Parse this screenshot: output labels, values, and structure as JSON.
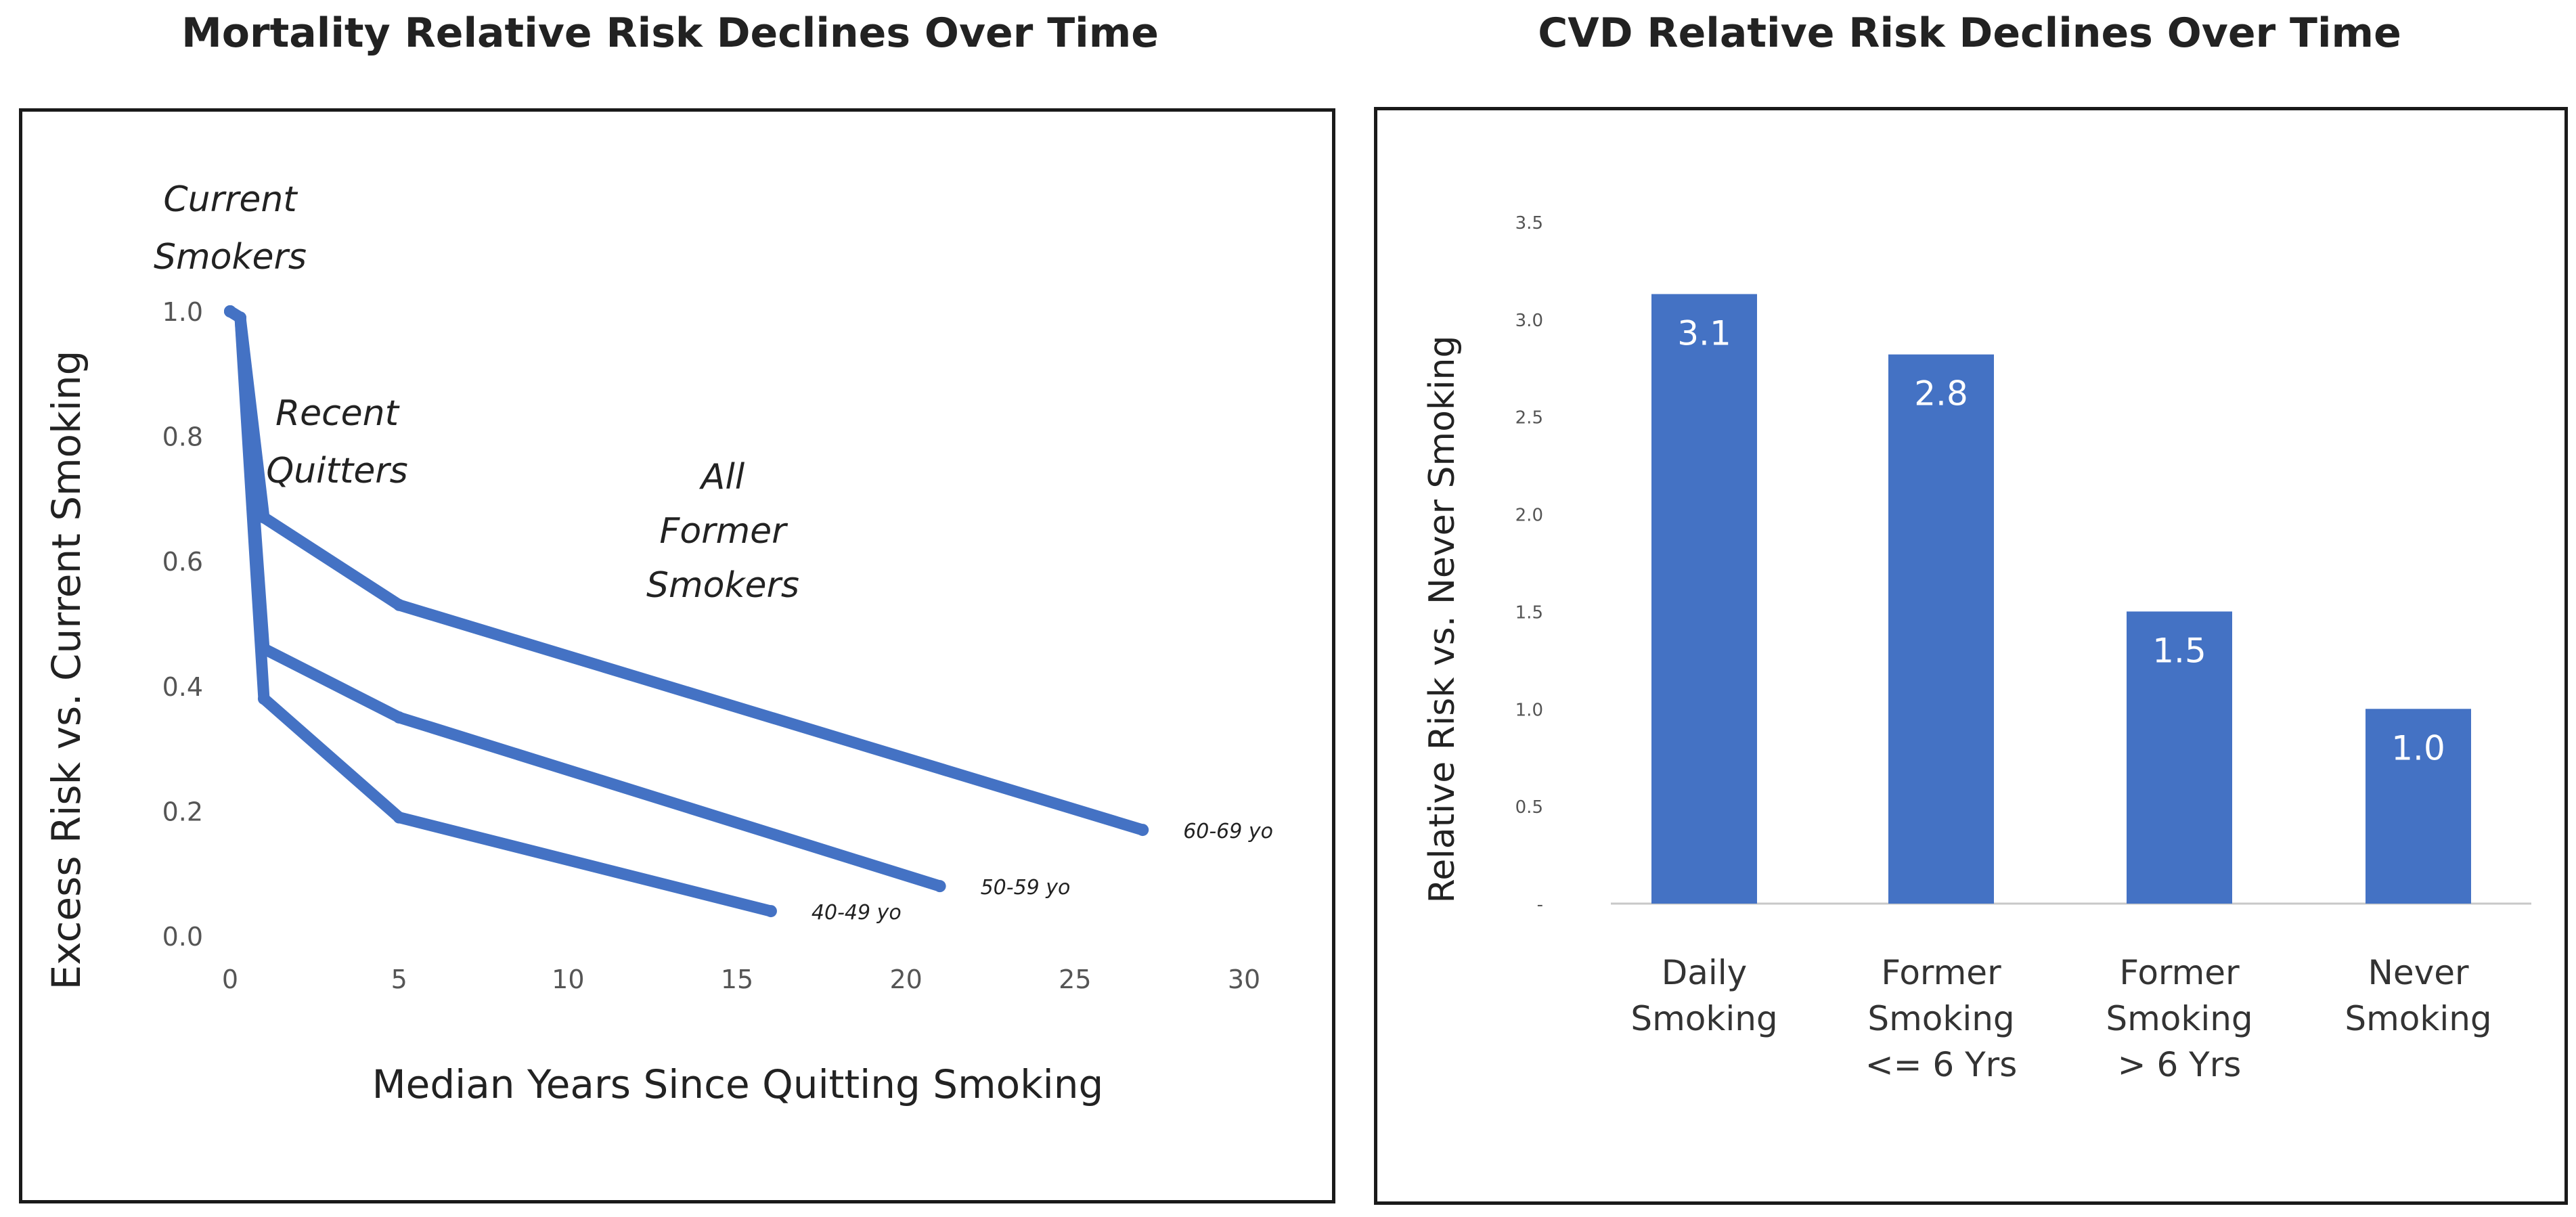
{
  "chart_data": [
    {
      "type": "line",
      "title": "Mortality Relative Risk Declines Over Time",
      "xlabel": "Median Years Since Quitting Smoking",
      "ylabel": "Excess Risk vs. Current Smoking",
      "xlim": [
        0,
        30
      ],
      "ylim": [
        0,
        1.0
      ],
      "x_ticks": [
        0,
        5,
        10,
        15,
        20,
        25,
        30
      ],
      "y_ticks": [
        0.0,
        0.2,
        0.4,
        0.6,
        0.8,
        1.0
      ],
      "x_tick_labels": [
        "0",
        "5",
        "10",
        "15",
        "20",
        "25",
        "30"
      ],
      "y_tick_labels": [
        "0.0",
        "0.2",
        "0.4",
        "0.6",
        "0.8",
        "1.0"
      ],
      "grid": false,
      "color": "#4472C4",
      "series": [
        {
          "name": "60-69 yo",
          "x": [
            0,
            0.3,
            1,
            5,
            27
          ],
          "y": [
            1.0,
            0.99,
            0.67,
            0.53,
            0.17
          ]
        },
        {
          "name": "50-59 yo",
          "x": [
            0,
            0.3,
            1,
            5,
            21
          ],
          "y": [
            1.0,
            0.99,
            0.46,
            0.35,
            0.08
          ]
        },
        {
          "name": "40-49 yo",
          "x": [
            0,
            0.3,
            1,
            5,
            16
          ],
          "y": [
            1.0,
            0.99,
            0.38,
            0.19,
            0.04
          ]
        }
      ],
      "annotations": [
        "Current Smokers",
        "Recent Quitters",
        "All Former Smokers"
      ]
    },
    {
      "type": "bar",
      "title": "CVD Relative Risk Declines Over Time",
      "xlabel": "",
      "ylabel": "Relative Risk vs. Never Smoking",
      "ylim": [
        0,
        3.5
      ],
      "y_ticks": [
        0,
        0.5,
        1.0,
        1.5,
        2.0,
        2.5,
        3.0,
        3.5
      ],
      "y_tick_labels": [
        "-",
        "0.5",
        "1.0",
        "1.5",
        "2.0",
        "2.5",
        "3.0",
        "3.5"
      ],
      "grid": false,
      "color": "#4472C4",
      "categories": [
        [
          "Daily",
          "Smoking"
        ],
        [
          "Former",
          "Smoking",
          "<= 6 Yrs"
        ],
        [
          "Former",
          "Smoking",
          "> 6 Yrs"
        ],
        [
          "Never",
          "Smoking"
        ]
      ],
      "values": [
        3.13,
        2.82,
        1.5,
        1.0
      ],
      "data_labels": [
        "3.1",
        "2.8",
        "1.5",
        "1.0"
      ]
    }
  ]
}
